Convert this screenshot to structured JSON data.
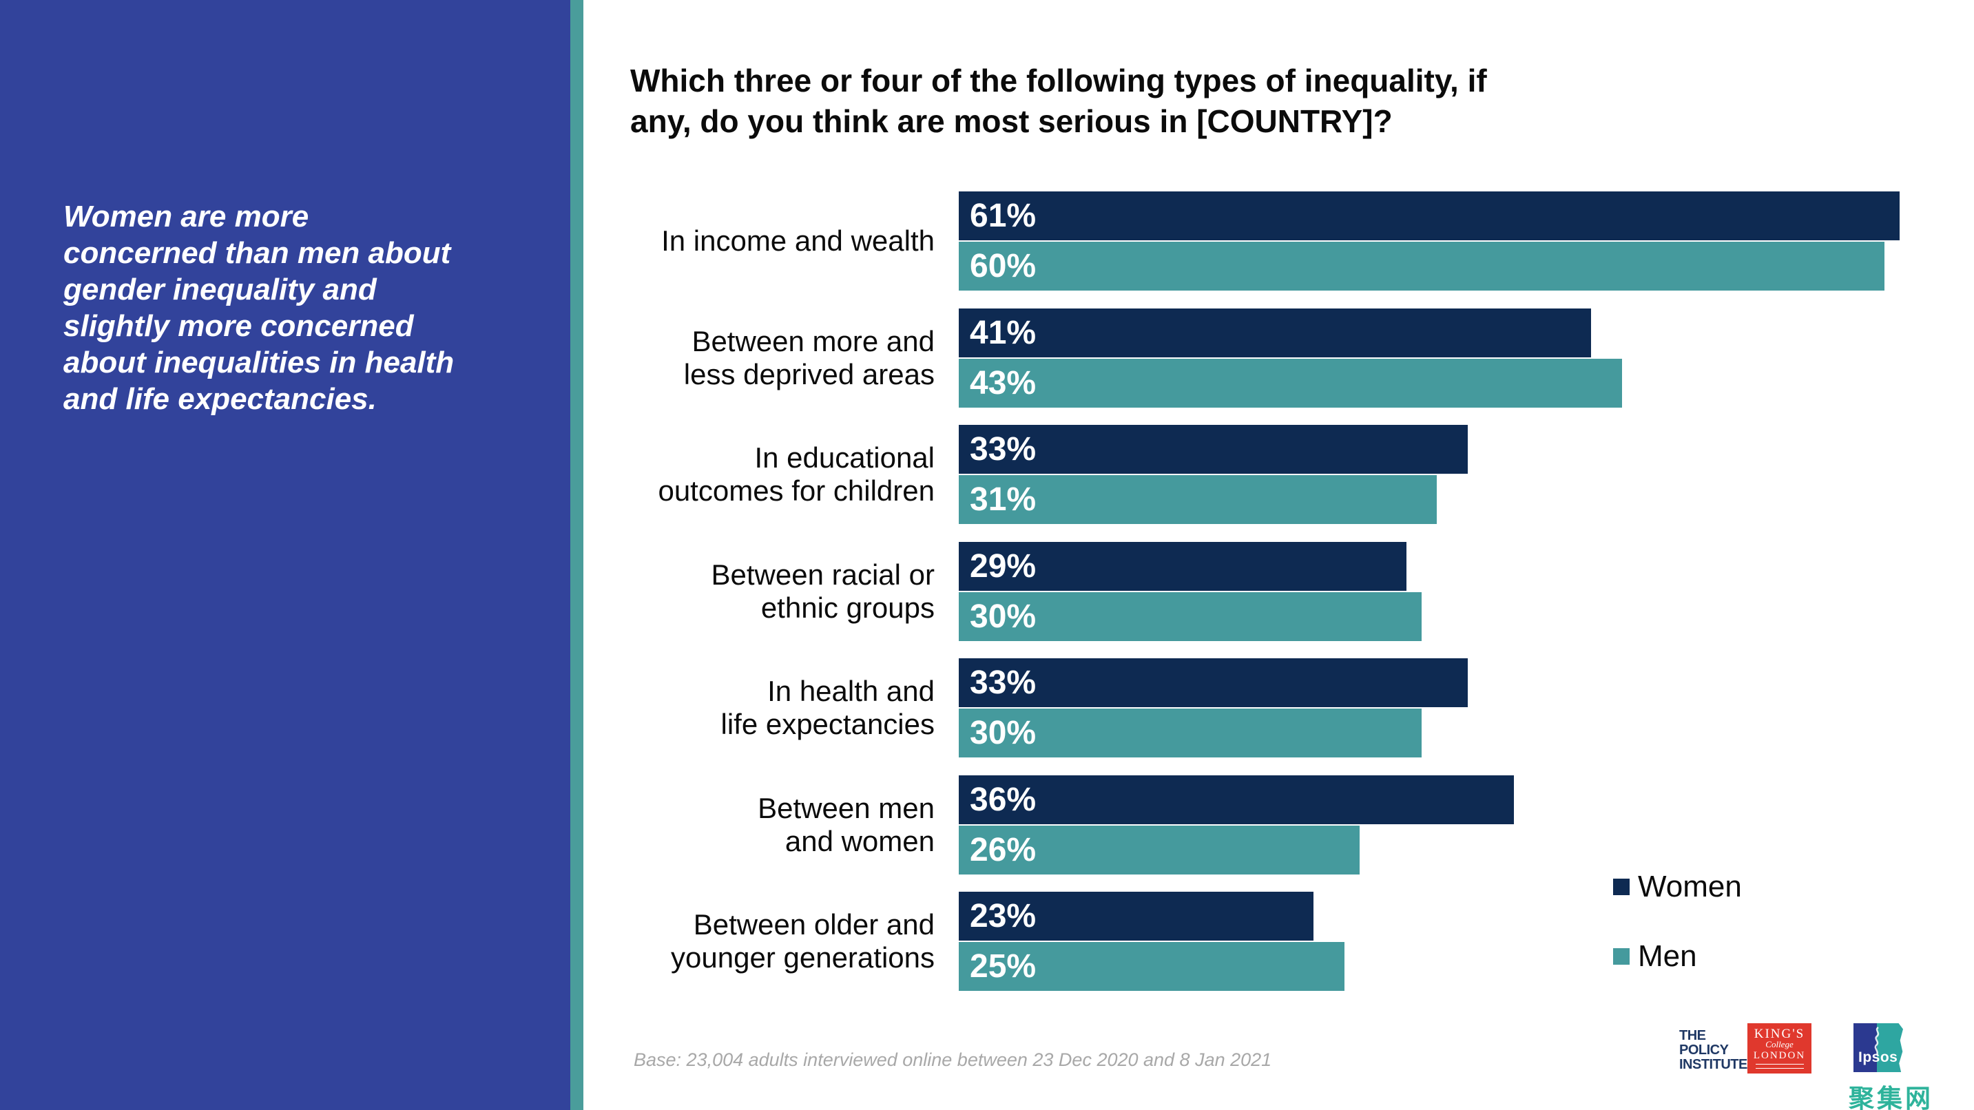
{
  "sidebar": {
    "text": "Women are more\nconcerned than men about\ngender inequality and\nslightly more concerned\nabout inequalities in health\nand life expectancies.",
    "background_color": "#32439B",
    "accent_strip_color": "#4A9D9B"
  },
  "chart_data": {
    "type": "bar",
    "orientation": "horizontal",
    "title": "Which three or four of the following types of inequality, if\nany, do you think are most serious in [COUNTRY]?",
    "categories": [
      "In income and wealth",
      "Between more and\nless deprived areas",
      "In educational\noutcomes for children",
      "Between racial or\nethnic groups",
      "In health and\nlife expectancies",
      "Between men\nand women",
      "Between older and\nyounger generations"
    ],
    "series": [
      {
        "name": "Women",
        "color": "#0E2A52",
        "values": [
          61,
          41,
          33,
          29,
          33,
          36,
          23
        ],
        "labels": [
          "61%",
          "41%",
          "33%",
          "29%",
          "33%",
          "36%",
          "23%"
        ]
      },
      {
        "name": "Men",
        "color": "#459A9D",
        "values": [
          60,
          43,
          31,
          30,
          30,
          26,
          25
        ],
        "labels": [
          "60%",
          "43%",
          "31%",
          "30%",
          "30%",
          "26%",
          "25%"
        ]
      }
    ],
    "value_suffix": "%",
    "xlim": [
      0,
      64
    ],
    "grid": false,
    "legend_position": "right-bottom",
    "value_labels_inside_bars": true
  },
  "footer": {
    "base_note": "Base: 23,004 adults interviewed online between 23 Dec 2020 and 8 Jan 2021",
    "logos": {
      "policy_institute": "THE\nPOLICY\nINSTITUTE",
      "kings_line1": "KING'S",
      "kings_line2": "College",
      "kings_line3": "LONDON",
      "ipsos": "Ipsos",
      "watermark": "聚集网"
    }
  }
}
